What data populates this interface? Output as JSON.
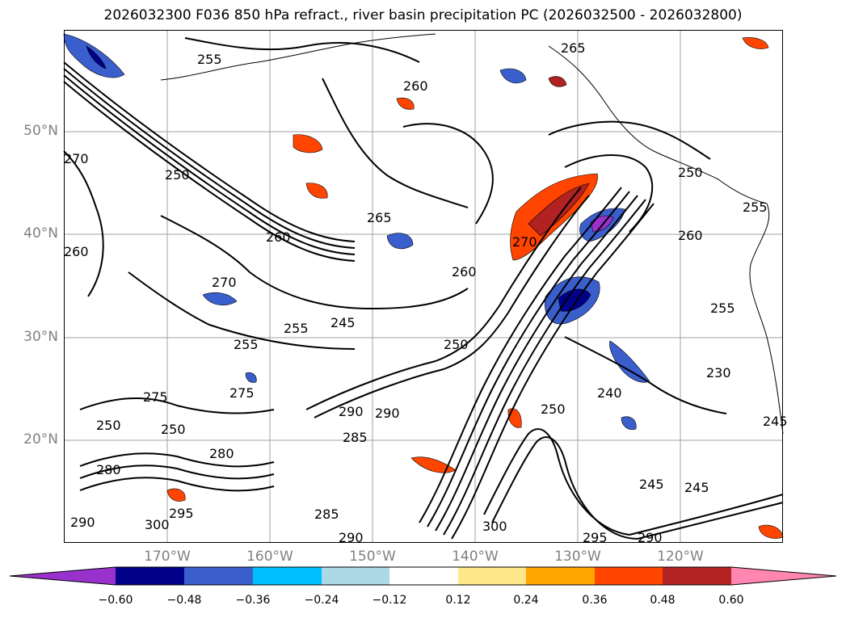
{
  "title": "2026032300 F036 850 hPa refract., river basin precipitation PC (2026032500 - 2026032800)",
  "axes": {
    "lat_labels": [
      "50°N",
      "40°N",
      "30°N",
      "20°N"
    ],
    "lon_labels": [
      "170°W",
      "160°W",
      "150°W",
      "140°W",
      "130°W",
      "120°W"
    ]
  },
  "colorbar": {
    "ticks": [
      "−0.60",
      "−0.48",
      "−0.36",
      "−0.24",
      "−0.12",
      "0.12",
      "0.24",
      "0.36",
      "0.48",
      "0.60"
    ],
    "colors": [
      "#9932cc",
      "#00008b",
      "#3a5fcd",
      "#00bfff",
      "#add8e6",
      "#ffffff",
      "#ffe88a",
      "#ffa500",
      "#ff4500",
      "#b22222",
      "#ff86b0"
    ]
  },
  "contour_labels": [
    "255",
    "265",
    "260",
    "250",
    "250",
    "270",
    "260",
    "265",
    "250",
    "260",
    "255",
    "260",
    "270",
    "275",
    "255",
    "245",
    "250",
    "255",
    "260",
    "255",
    "230",
    "240",
    "250",
    "275",
    "250",
    "290",
    "290",
    "285",
    "280",
    "280",
    "295",
    "300",
    "290",
    "285",
    "300",
    "290",
    "295",
    "290",
    "245",
    "245",
    "270",
    "245"
  ],
  "map": {
    "land_color": "#ffffff",
    "grid_color": "#a0a0a0"
  }
}
